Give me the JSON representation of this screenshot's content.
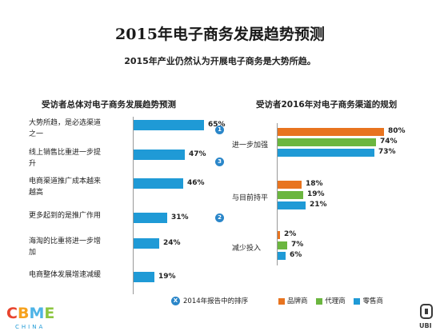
{
  "header": {
    "title": "2015年电子商务发展趋势预测",
    "subtitle": "2015年产业仍然认为开展电子商务是大势所趋。"
  },
  "chart_data": [
    {
      "type": "bar",
      "orientation": "horizontal",
      "title": "受访者总体对电子商务发展趋势预测",
      "categories": [
        "大势所趋，是必选渠道之一",
        "线上销售比重进一步提升",
        "电商渠道推广成本越来越高",
        "更多起到的是推广作用",
        "海淘的比重将进一步增加",
        "电商整体发展增速减缓"
      ],
      "values": [
        65,
        47,
        46,
        31,
        24,
        19
      ],
      "value_labels": [
        "65%",
        "47%",
        "46%",
        "31%",
        "24%",
        "19%"
      ],
      "rank_2014": [
        "1",
        "3",
        "",
        "2",
        "",
        ""
      ],
      "rank_legend": "2014年报告中的排序",
      "rank_legend_marker": "X",
      "xlim": [
        0,
        100
      ],
      "bar_color": "#1f9ad6"
    },
    {
      "type": "bar",
      "orientation": "horizontal",
      "title": "受访者2016年对电子商务渠道的规划",
      "categories": [
        "进一步加强",
        "与目前持平",
        "减少投入"
      ],
      "series": [
        {
          "name": "品牌商",
          "color": "#e8741f",
          "values": [
            80,
            18,
            2
          ],
          "labels": [
            "80%",
            "18%",
            "2%"
          ]
        },
        {
          "name": "代理商",
          "color": "#6bb63f",
          "values": [
            74,
            19,
            7
          ],
          "labels": [
            "74%",
            "19%",
            "7%"
          ]
        },
        {
          "name": "零售商",
          "color": "#1f9ad6",
          "values": [
            73,
            21,
            6
          ],
          "labels": [
            "73%",
            "21%",
            "6%"
          ]
        }
      ],
      "xlim": [
        0,
        100
      ],
      "legend_position": "bottom"
    }
  ],
  "logos": {
    "left_text": "CBME",
    "left_sub": "CHINA",
    "left_colors": [
      "#e8442e",
      "#f6a21e",
      "#4db3e6",
      "#8cc63f"
    ],
    "right_text": "UBI"
  }
}
